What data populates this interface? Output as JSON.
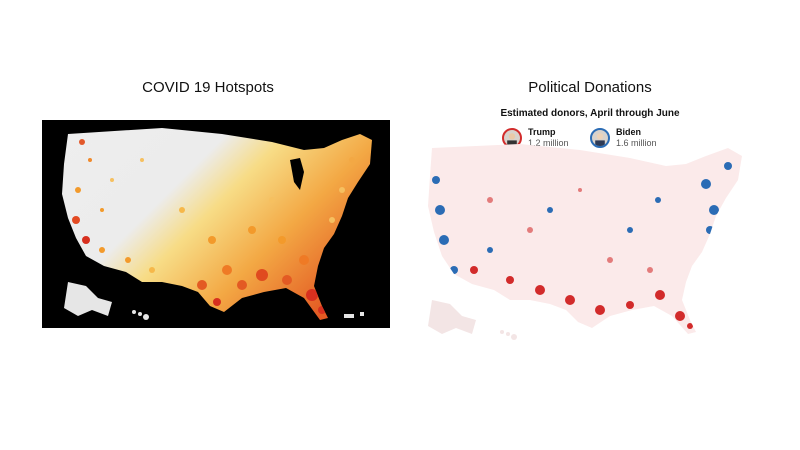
{
  "left_panel": {
    "title": "COVID 19 Hotspots",
    "colors": {
      "background": "#000000",
      "land": "#e6e6e6",
      "low": "#f6dc7a",
      "mid": "#f39a2b",
      "high": "#d7301f"
    }
  },
  "right_panel": {
    "title": "Political Donations",
    "legend_title": "Estimated donors, April through June",
    "candidates": [
      {
        "name": "Trump",
        "count": "1.2 million",
        "color": "#d22b2b"
      },
      {
        "name": "Biden",
        "count": "1.6 million",
        "color": "#2b6cb5"
      }
    ],
    "colors": {
      "land": "#fbeaea",
      "red": "#d22b2b",
      "blue": "#2b6cb5"
    }
  }
}
